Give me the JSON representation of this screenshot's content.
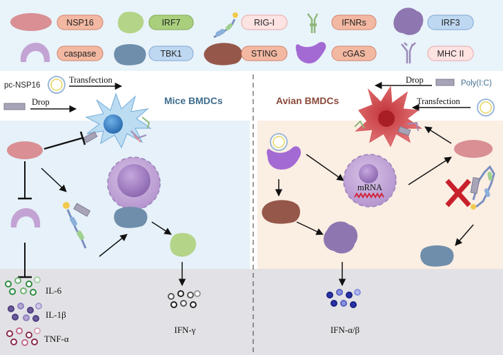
{
  "legend": {
    "nsp16": "NSP16",
    "irf7": "IRF7",
    "rig_i": "RIG-I",
    "ifnrs": "IFNRs",
    "irf3": "IRF3",
    "caspase": "caspase",
    "tbk1": "TBK1",
    "sting": "STING",
    "cgas": "cGAS",
    "mhc_ii": "MHC II"
  },
  "mice": {
    "title": "Mice BMDCs",
    "plasmid_label": "pc-NSP16",
    "transfection": "Transfection",
    "drop": "Drop",
    "cytokines": [
      "IL-6",
      "IL-1β",
      "TNF-α"
    ],
    "ifn_output": "IFN-γ"
  },
  "avian": {
    "title": "Avian BMDCs",
    "drop": "Drop",
    "polyic": "Poly(I:C)",
    "transfection": "Transfection",
    "mrna": "mRNA",
    "ifn_output": "IFN-α/β"
  },
  "colors": {
    "legend_bg": "#e9f3fa",
    "mice_bg": "#e6f1f9",
    "avian_bg": "#fbeee3",
    "bottom_bg": "#e2e2e6",
    "nsp16_blob": "#d98f94",
    "irf7_blob": "#b4d488",
    "tbk1_blob": "#6e8eab",
    "sting_blob": "#95574a",
    "cgas_blob": "#a46ad4",
    "irf3_blob": "#8e76b0",
    "caspase_blob": "#c3a3d4",
    "title_mice": "#3f6d8e",
    "title_avian": "#8a4a3a",
    "inhibit_x": "#c8202c"
  }
}
